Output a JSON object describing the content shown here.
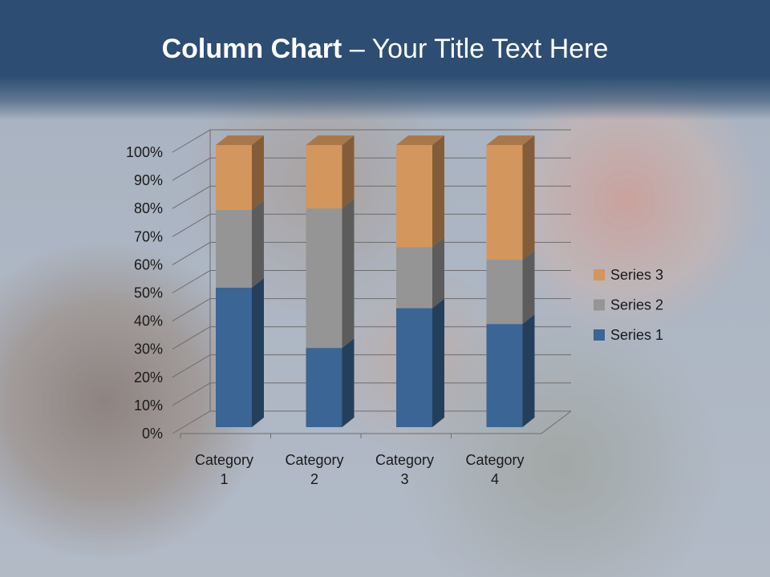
{
  "title": {
    "bold": "Column Chart",
    "rest": " – Your Title Text Here"
  },
  "chart_data": {
    "type": "bar",
    "stacking": "percent",
    "three_d": true,
    "categories": [
      "Category 1",
      "Category 2",
      "Category 3",
      "Category 4"
    ],
    "series": [
      {
        "name": "Series 1",
        "values": [
          4.3,
          2.5,
          3.5,
          4.5
        ],
        "color": "#3a6594"
      },
      {
        "name": "Series 2",
        "values": [
          2.4,
          4.4,
          1.8,
          2.8
        ],
        "color": "#959595"
      },
      {
        "name": "Series 3",
        "values": [
          2,
          2,
          3,
          5
        ],
        "color": "#d3965c"
      }
    ],
    "ylim": [
      0,
      100
    ],
    "yticks": [
      "0%",
      "10%",
      "20%",
      "30%",
      "40%",
      "50%",
      "60%",
      "70%",
      "80%",
      "90%",
      "100%"
    ],
    "grid": true,
    "legend": "right"
  }
}
